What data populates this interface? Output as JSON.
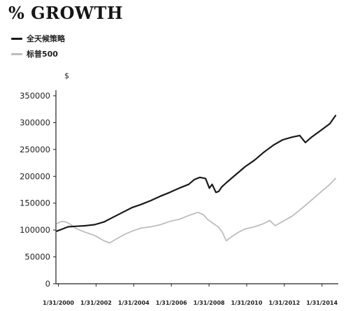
{
  "header": {
    "title": "% GROWTH"
  },
  "chart_data": {
    "type": "line",
    "title": "% GROWTH",
    "xlabel": "",
    "ylabel": "$",
    "ylim": [
      0,
      350000
    ],
    "y_ticks": [
      0,
      50000,
      100000,
      150000,
      200000,
      250000,
      300000,
      350000
    ],
    "y_tick_labels": [
      "0",
      "50000",
      "100000",
      "150000",
      "200000",
      "250000",
      "300000",
      "350000"
    ],
    "x_range": [
      1999.95,
      2014.95
    ],
    "x_ticks": [
      2000.083,
      2002.083,
      2004.083,
      2006.083,
      2008.083,
      2010.083,
      2012.083,
      2014.083
    ],
    "x_tick_labels": [
      "1/31/2000",
      "1/31/2002",
      "1/31/2004",
      "1/31/2006",
      "1/31/2008",
      "1/31/2010",
      "1/31/2012",
      "1/31/2014"
    ],
    "grid": false,
    "legend_position": "top-left",
    "series": [
      {
        "name": "全天候策略",
        "color": "#1a1a1a",
        "x": [
          2000.0,
          2000.3,
          2000.6,
          2001.0,
          2001.5,
          2002.0,
          2002.5,
          2003.0,
          2003.5,
          2004.0,
          2004.5,
          2005.0,
          2005.5,
          2006.0,
          2006.5,
          2007.0,
          2007.3,
          2007.6,
          2007.9,
          2008.1,
          2008.25,
          2008.45,
          2008.6,
          2008.75,
          2009.0,
          2009.5,
          2010.0,
          2010.5,
          2011.0,
          2011.5,
          2012.0,
          2012.5,
          2012.9,
          2013.2,
          2013.5,
          2014.0,
          2014.5,
          2014.8
        ],
        "values": [
          98000,
          102000,
          106000,
          107000,
          108000,
          110000,
          115000,
          124000,
          133000,
          142000,
          148000,
          155000,
          163000,
          170000,
          178000,
          185000,
          194000,
          198000,
          196000,
          178000,
          185000,
          170000,
          172000,
          180000,
          188000,
          203000,
          218000,
          230000,
          245000,
          258000,
          268000,
          273000,
          276000,
          263000,
          272000,
          285000,
          298000,
          313000
        ]
      },
      {
        "name": "标普500",
        "color": "#bdbdbd",
        "x": [
          2000.0,
          2000.25,
          2000.5,
          2000.75,
          2001.0,
          2001.5,
          2002.0,
          2002.5,
          2002.8,
          2003.2,
          2003.6,
          2004.0,
          2004.5,
          2005.0,
          2005.5,
          2006.0,
          2006.5,
          2007.0,
          2007.5,
          2007.8,
          2008.0,
          2008.2,
          2008.4,
          2008.6,
          2008.8,
          2009.0,
          2009.3,
          2009.6,
          2010.0,
          2010.5,
          2011.0,
          2011.3,
          2011.6,
          2012.0,
          2012.5,
          2013.0,
          2013.5,
          2014.0,
          2014.5,
          2014.8
        ],
        "values": [
          112000,
          116000,
          115000,
          110000,
          103000,
          96000,
          90000,
          80000,
          76000,
          84000,
          92000,
          98000,
          104000,
          106000,
          110000,
          116000,
          120000,
          127000,
          133000,
          128000,
          120000,
          115000,
          110000,
          105000,
          95000,
          80000,
          88000,
          95000,
          102000,
          106000,
          112000,
          118000,
          108000,
          116000,
          126000,
          140000,
          155000,
          170000,
          185000,
          196000
        ]
      }
    ]
  }
}
